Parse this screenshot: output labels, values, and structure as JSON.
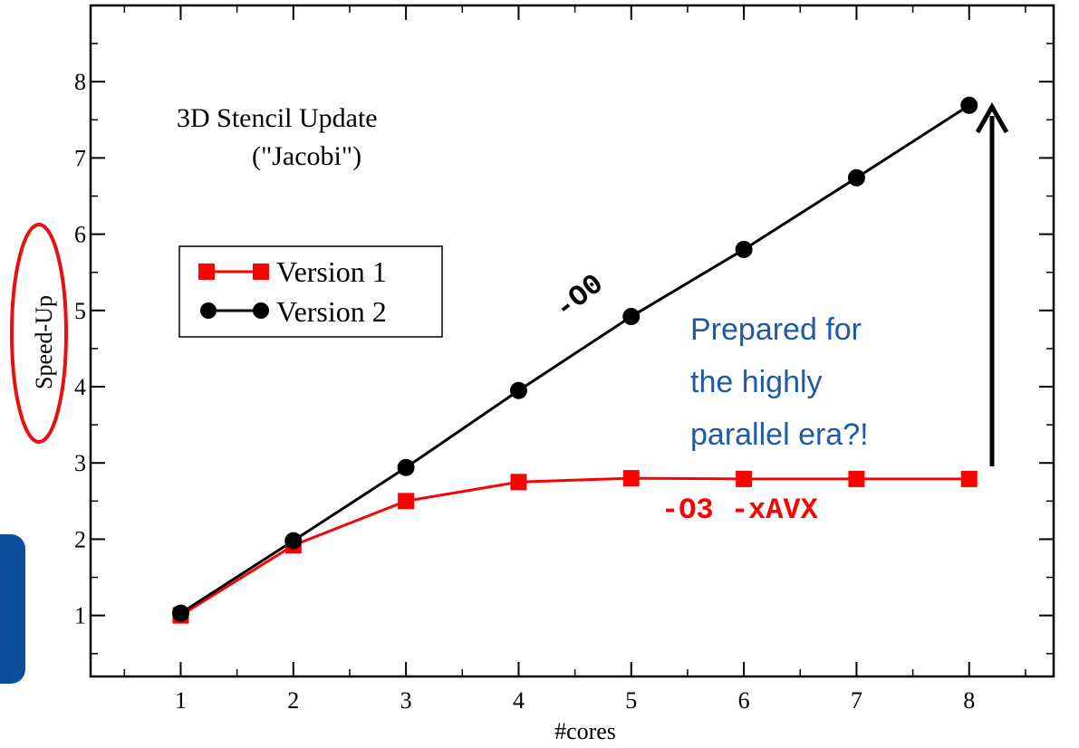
{
  "chart_data": {
    "type": "line",
    "title": "3D Stencil Update",
    "subtitle": "(\"Jacobi\")",
    "xlabel": "#cores",
    "ylabel": "Speed-Up",
    "xlim": [
      0.2,
      8.75
    ],
    "ylim": [
      0.2,
      9.0
    ],
    "x_ticks": [
      1,
      2,
      3,
      4,
      5,
      6,
      7,
      8
    ],
    "y_ticks": [
      1,
      2,
      3,
      4,
      5,
      6,
      7,
      8
    ],
    "grid": false,
    "legend_position": "middle-left",
    "series": [
      {
        "name": "Version 1",
        "color": "#ff0000",
        "marker": "square",
        "x": [
          1,
          2,
          3,
          4,
          5,
          6,
          7,
          8
        ],
        "y": [
          1.0,
          1.92,
          2.5,
          2.75,
          2.8,
          2.79,
          2.79,
          2.79
        ]
      },
      {
        "name": "Version 2",
        "color": "#000000",
        "marker": "circle",
        "x": [
          1,
          2,
          3,
          4,
          5,
          6,
          7,
          8
        ],
        "y": [
          1.03,
          1.98,
          2.94,
          3.95,
          4.92,
          5.8,
          6.74,
          7.69
        ]
      }
    ],
    "annotations": {
      "version2_flag": "-O0",
      "version1_flag": "-O3 -xAVX",
      "note_lines": [
        "Prepared for",
        "the highly",
        "parallel era?!"
      ]
    }
  },
  "colors": {
    "ylabel_highlight": "#e81010",
    "note_text": "#1f5aa6",
    "side_box": "#0a4f9c"
  }
}
